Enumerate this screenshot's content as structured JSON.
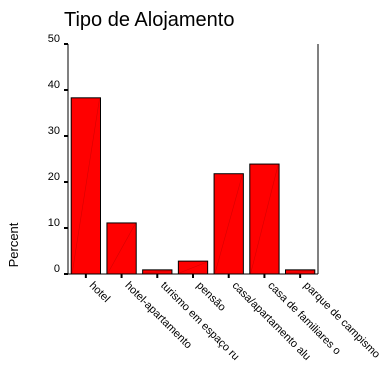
{
  "chart_data": {
    "type": "bar",
    "title": "Tipo de Alojamento",
    "xlabel": "",
    "ylabel": "Percent",
    "categories": [
      "hotel",
      "hotel-apartamento",
      "turismo em espaço ru",
      "pensão",
      "casa/apartamento alu",
      "casa de familiares o",
      "parque de campismo"
    ],
    "values": [
      38.3,
      11.1,
      0.9,
      2.8,
      21.8,
      23.9,
      0.9
    ],
    "ylim": [
      0,
      50
    ],
    "yticks": [
      0,
      10,
      20,
      30,
      40,
      50
    ],
    "bar_color": "#ff0000",
    "bar_edge_color": "#000000",
    "grid": false
  }
}
